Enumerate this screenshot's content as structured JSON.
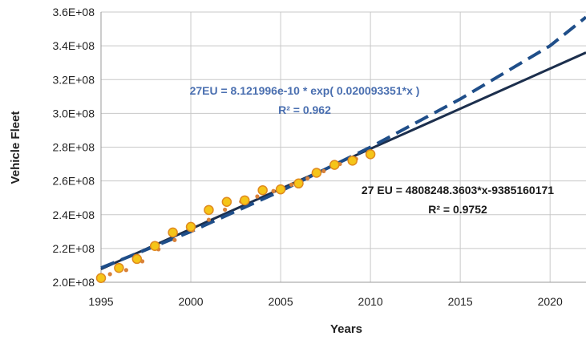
{
  "chart_data": {
    "type": "scatter",
    "xlabel": "Years",
    "ylabel": "Vehicle Fleet",
    "xlim": [
      1995,
      2022
    ],
    "ylim": [
      200000000,
      360000000
    ],
    "x_ticks": [
      1995,
      2000,
      2005,
      2010,
      2015,
      2020
    ],
    "y_ticks": [
      200000000,
      220000000,
      240000000,
      260000000,
      280000000,
      300000000,
      320000000,
      340000000,
      360000000
    ],
    "x_tick_labels": [
      "1995",
      "2000",
      "2005",
      "2010",
      "2015",
      "2020"
    ],
    "y_tick_labels": [
      "2.0E+08",
      "2.2E+08",
      "2.4E+08",
      "2.6E+08",
      "2.8E+08",
      "3.0E+08",
      "3.2E+08",
      "3.4E+08",
      "3.6E+08"
    ],
    "grid": true,
    "series": [
      {
        "type": "scatter",
        "color": "#f5c518",
        "edge_color": "#e08a1e",
        "x": [
          1995,
          1996,
          1997,
          1998,
          1999,
          2000,
          2001,
          2002,
          2003,
          2004,
          2005,
          2006,
          2007,
          2008,
          2009,
          2010
        ],
        "y": [
          202500000,
          208500000,
          213800000,
          221500000,
          229500000,
          232800000,
          242800000,
          247600000,
          248500000,
          254500000,
          255000000,
          258500000,
          264800000,
          269500000,
          272000000,
          275800000
        ]
      },
      {
        "type": "scatter-small",
        "color": "#d9823b",
        "x": [
          1995.5,
          1996.4,
          1997.3,
          1998.2,
          1999.1,
          2000.1,
          2001.0,
          2001.9,
          2002.8,
          2003.7,
          2004.6,
          2005.6,
          2006.5,
          2007.4,
          2008.3,
          2009.2,
          2010.1
        ],
        "y": [
          204800000,
          207200000,
          212400000,
          219500000,
          225000000,
          230800000,
          237000000,
          243000000,
          247800000,
          250800000,
          254000000,
          257800000,
          261500000,
          265800000,
          270000000,
          273000000,
          276400000
        ]
      },
      {
        "type": "line",
        "style": "solid",
        "color": "#1c2f4d",
        "x": [
          1995,
          2022
        ],
        "y": [
          207800000,
          336000000
        ]
      },
      {
        "type": "line",
        "style": "dashed",
        "color": "#1f4e89",
        "x": [
          1995,
          2000,
          2005,
          2010,
          2015,
          2020,
          2022
        ],
        "y": [
          208500000,
          230000000,
          254000000,
          280000000,
          308500000,
          340000000,
          357000000
        ]
      }
    ],
    "annotations": {
      "exp_equation": "27EU = 8.121996e-10 * exp( 0.020093351*x )",
      "exp_r2": "R² = 0.962",
      "lin_equation": "27 EU = 4808248.3603*x-9385160171",
      "lin_r2": "R² = 0.9752"
    }
  }
}
